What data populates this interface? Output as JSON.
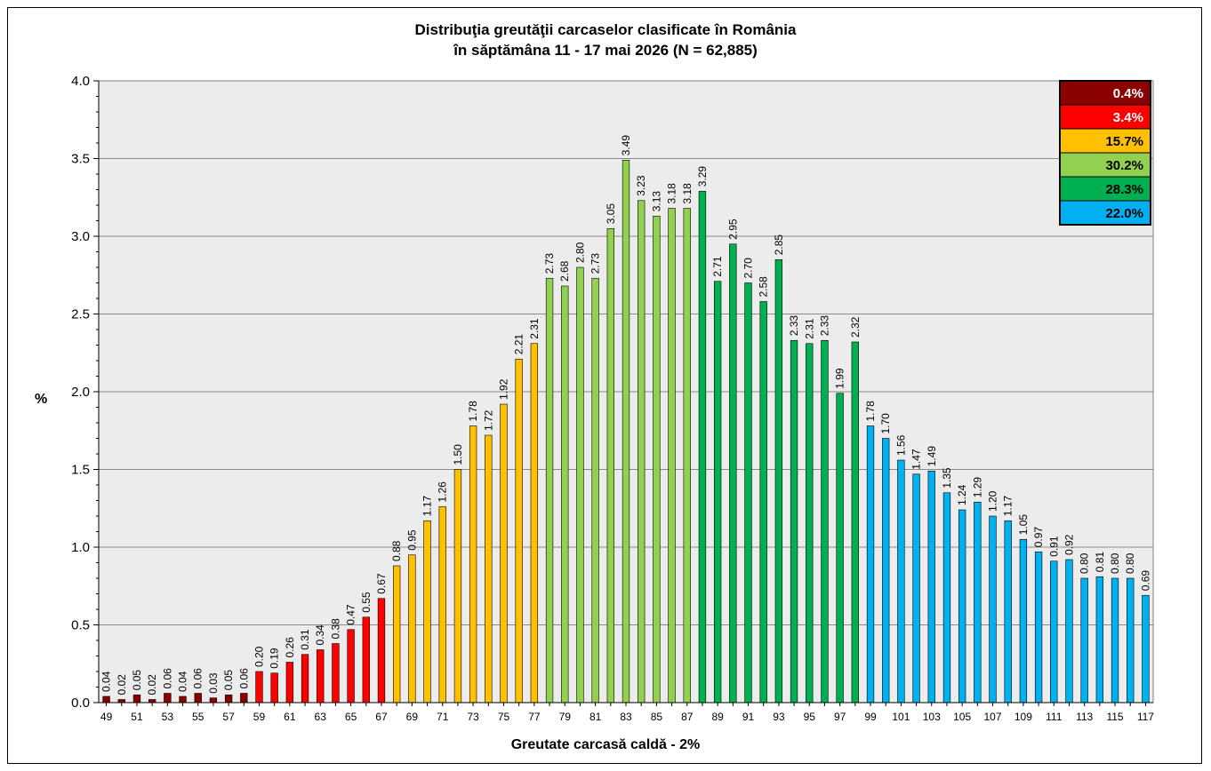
{
  "chart_data": {
    "type": "bar",
    "title": "Distribuţia greutăţii carcaselor clasificate în România",
    "subtitle": "în săptămâna 11 - 17 mai 2026 (N = 62,885)",
    "xlabel": "Greutate carcasă caldă - 2%",
    "ylabel": "%",
    "ylim": [
      0,
      4.0
    ],
    "yticks": [
      "0.0",
      "0.5",
      "1.0",
      "1.5",
      "2.0",
      "2.5",
      "3.0",
      "3.5",
      "4.0"
    ],
    "grid": true,
    "legend_position": "top-right",
    "x": [
      49,
      50,
      51,
      52,
      53,
      54,
      55,
      56,
      57,
      58,
      59,
      60,
      61,
      62,
      63,
      64,
      65,
      66,
      67,
      68,
      69,
      70,
      71,
      72,
      73,
      74,
      75,
      76,
      77,
      78,
      79,
      80,
      81,
      82,
      83,
      84,
      85,
      86,
      87,
      88,
      89,
      90,
      91,
      92,
      93,
      94,
      95,
      96,
      97,
      98,
      99,
      100,
      101,
      102,
      103,
      104,
      105,
      106,
      107,
      108,
      109,
      110,
      111,
      112,
      113,
      114,
      115,
      116,
      117
    ],
    "values": [
      0.04,
      0.02,
      0.05,
      0.02,
      0.06,
      0.04,
      0.06,
      0.03,
      0.05,
      0.06,
      0.2,
      0.19,
      0.26,
      0.31,
      0.34,
      0.38,
      0.47,
      0.55,
      0.67,
      0.88,
      0.95,
      1.17,
      1.26,
      1.5,
      1.78,
      1.72,
      1.92,
      2.21,
      2.31,
      2.73,
      2.68,
      2.8,
      2.73,
      3.05,
      3.49,
      3.23,
      3.13,
      3.18,
      3.18,
      3.29,
      2.71,
      2.95,
      2.7,
      2.58,
      2.85,
      2.33,
      2.31,
      2.33,
      1.99,
      2.32,
      1.78,
      1.7,
      1.56,
      1.47,
      1.49,
      1.35,
      1.24,
      1.29,
      1.2,
      1.17,
      1.05,
      0.97,
      0.91,
      0.92,
      0.8,
      0.81,
      0.8,
      0.8,
      0.69
    ],
    "value_labels": [
      "0.04",
      "0.02",
      "0.05",
      "0.02",
      "0.06",
      "0.04",
      "0.06",
      "0.03",
      "0.05",
      "0.06",
      "0.20",
      "0.19",
      "0.26",
      "0.31",
      "0.34",
      "0.38",
      "0.47",
      "0.55",
      "0.67",
      "0.88",
      "0.95",
      "1.17",
      "1.26",
      "1.50",
      "1.78",
      "1.72",
      "1.92",
      "2.21",
      "2.31",
      "2.73",
      "2.68",
      "2.80",
      "2.73",
      "3.05",
      "3.49",
      "3.23",
      "3.13",
      "3.18",
      "3.18",
      "3.29",
      "2.71",
      "2.95",
      "2.70",
      "2.58",
      "2.85",
      "2.33",
      "2.31",
      "2.33",
      "1.99",
      "2.32",
      "1.78",
      "1.70",
      "1.56",
      "1.47",
      "1.49",
      "1.35",
      "1.24",
      "1.29",
      "1.20",
      "1.17",
      "1.05",
      "0.97",
      "0.91",
      "0.92",
      "0.80",
      "0.81",
      "0.80",
      "0.80",
      "0.69"
    ],
    "x_tick_labels": [
      "49",
      "51",
      "53",
      "55",
      "57",
      "59",
      "61",
      "63",
      "65",
      "67",
      "69",
      "71",
      "73",
      "75",
      "77",
      "79",
      "81",
      "83",
      "85",
      "87",
      "89",
      "91",
      "93",
      "95",
      "97",
      "99",
      "101",
      "103",
      "105",
      "107",
      "109",
      "111",
      "113",
      "115",
      "117"
    ],
    "bands": [
      {
        "label": "0.4%",
        "from": 49,
        "to": 58,
        "color": "#8b0000",
        "text_color": "#ffffff"
      },
      {
        "label": "3.4%",
        "from": 59,
        "to": 67,
        "color": "#ff0000",
        "text_color": "#ffffff"
      },
      {
        "label": "15.7%",
        "from": 68,
        "to": 77,
        "color": "#ffc000",
        "text_color": "#000000"
      },
      {
        "label": "30.2%",
        "from": 78,
        "to": 87,
        "color": "#92d050",
        "text_color": "#000000"
      },
      {
        "label": "28.3%",
        "from": 88,
        "to": 98,
        "color": "#00b050",
        "text_color": "#000000"
      },
      {
        "label": "22.0%",
        "from": 99,
        "to": 117,
        "color": "#00b0f0",
        "text_color": "#000000"
      }
    ]
  }
}
